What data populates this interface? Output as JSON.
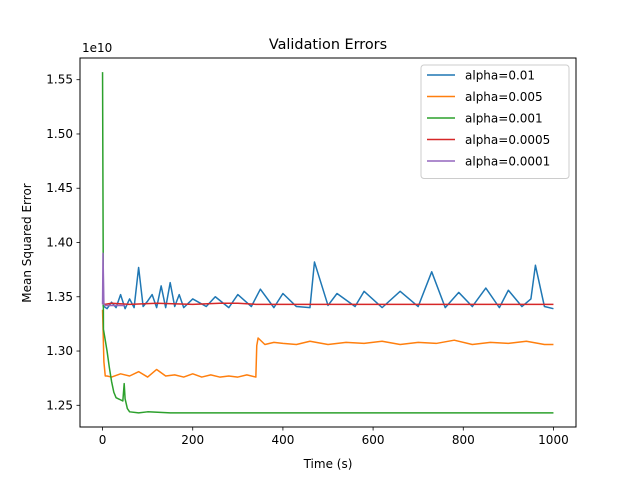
{
  "chart_data": {
    "type": "line",
    "title": "Validation Errors",
    "xlabel": "Time (s)",
    "ylabel": "Mean Squared Error",
    "y_offset_label": "1e10",
    "xlim": [
      -50,
      1050
    ],
    "ylim": [
      1.23,
      1.57
    ],
    "x_ticks": [
      0,
      200,
      400,
      600,
      800,
      1000
    ],
    "x_tick_labels": [
      "0",
      "200",
      "400",
      "600",
      "800",
      "1000"
    ],
    "y_ticks": [
      1.25,
      1.3,
      1.35,
      1.4,
      1.45,
      1.5,
      1.55
    ],
    "y_tick_labels": [
      "1.25",
      "1.30",
      "1.35",
      "1.40",
      "1.45",
      "1.50",
      "1.55"
    ],
    "grid": false,
    "legend_position": "top-right",
    "series": [
      {
        "name": "alpha=0.01",
        "color": "#1f77b4",
        "x": [
          0,
          10,
          20,
          30,
          40,
          50,
          60,
          70,
          80,
          90,
          100,
          110,
          120,
          130,
          140,
          150,
          160,
          170,
          180,
          200,
          230,
          250,
          280,
          300,
          330,
          350,
          380,
          400,
          430,
          460,
          470,
          500,
          520,
          560,
          580,
          620,
          660,
          700,
          730,
          760,
          790,
          820,
          850,
          880,
          900,
          930,
          950,
          960,
          980,
          1000
        ],
        "y": [
          1.342,
          1.339,
          1.345,
          1.34,
          1.352,
          1.339,
          1.348,
          1.34,
          1.377,
          1.341,
          1.346,
          1.352,
          1.34,
          1.36,
          1.34,
          1.363,
          1.341,
          1.352,
          1.34,
          1.348,
          1.341,
          1.35,
          1.34,
          1.352,
          1.341,
          1.357,
          1.34,
          1.353,
          1.341,
          1.34,
          1.382,
          1.342,
          1.353,
          1.341,
          1.355,
          1.34,
          1.355,
          1.341,
          1.373,
          1.34,
          1.354,
          1.341,
          1.358,
          1.34,
          1.356,
          1.341,
          1.348,
          1.379,
          1.341,
          1.339
        ]
      },
      {
        "name": "alpha=0.005",
        "color": "#ff7f0e",
        "x": [
          0,
          3,
          6,
          10,
          20,
          40,
          60,
          80,
          100,
          120,
          140,
          160,
          180,
          200,
          220,
          240,
          260,
          280,
          300,
          320,
          340,
          342,
          345,
          360,
          380,
          400,
          430,
          460,
          500,
          540,
          580,
          620,
          660,
          700,
          740,
          780,
          820,
          860,
          900,
          940,
          980,
          1000
        ],
        "y": [
          1.338,
          1.29,
          1.277,
          1.277,
          1.276,
          1.279,
          1.277,
          1.281,
          1.276,
          1.283,
          1.277,
          1.278,
          1.276,
          1.279,
          1.276,
          1.278,
          1.276,
          1.277,
          1.276,
          1.278,
          1.276,
          1.305,
          1.312,
          1.306,
          1.308,
          1.307,
          1.306,
          1.309,
          1.306,
          1.308,
          1.307,
          1.309,
          1.306,
          1.308,
          1.307,
          1.31,
          1.306,
          1.308,
          1.307,
          1.309,
          1.306,
          1.306
        ]
      },
      {
        "name": "alpha=0.001",
        "color": "#2ca02c",
        "x": [
          0,
          2,
          6,
          10,
          15,
          20,
          25,
          30,
          35,
          40,
          45,
          48,
          50,
          55,
          60,
          80,
          100,
          150,
          200,
          300,
          400,
          500,
          600,
          700,
          800,
          900,
          1000
        ],
        "y": [
          1.557,
          1.32,
          1.31,
          1.3,
          1.285,
          1.272,
          1.262,
          1.257,
          1.256,
          1.255,
          1.254,
          1.27,
          1.256,
          1.247,
          1.244,
          1.243,
          1.244,
          1.243,
          1.243,
          1.243,
          1.243,
          1.243,
          1.243,
          1.243,
          1.243,
          1.243,
          1.243
        ]
      },
      {
        "name": "alpha=0.0005",
        "color": "#d62728",
        "x": [
          0,
          5,
          20,
          60,
          120,
          200,
          260,
          300,
          340,
          400,
          500,
          600,
          700,
          800,
          900,
          1000
        ],
        "y": [
          1.344,
          1.343,
          1.344,
          1.343,
          1.344,
          1.343,
          1.344,
          1.344,
          1.343,
          1.343,
          1.343,
          1.343,
          1.343,
          1.343,
          1.343,
          1.343
        ]
      },
      {
        "name": "alpha=0.0001",
        "color": "#9467bd",
        "x": [
          0,
          1,
          3,
          6,
          15,
          50
        ],
        "y": [
          1.343,
          1.39,
          1.343,
          1.342,
          1.342,
          1.342
        ]
      }
    ]
  }
}
